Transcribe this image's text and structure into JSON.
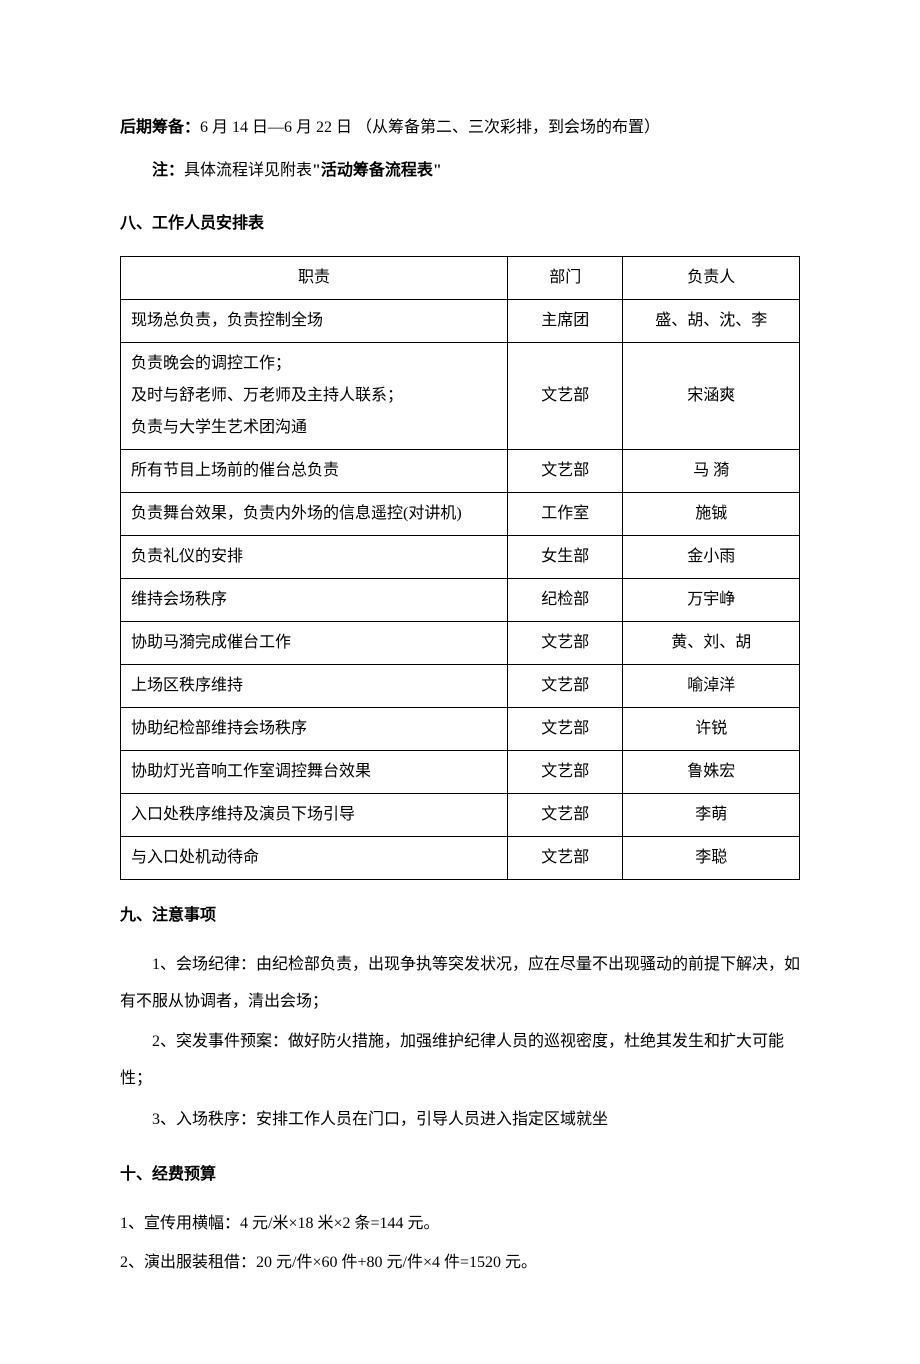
{
  "prep": {
    "label": "后期筹备：",
    "text": "6 月 14 日—6 月 22 日 （从筹备第二、三次彩排，到会场的布置）"
  },
  "note": {
    "prefix": "注：",
    "mid": "具体流程详见附表",
    "quoted": "\"活动筹备流程表\""
  },
  "section8": {
    "heading": "八、工作人员安排表",
    "headers": {
      "duty": "职责",
      "dept": "部门",
      "person": "负责人"
    },
    "rows": [
      {
        "duty": "现场总负责，负责控制全场",
        "dept": "主席团",
        "person": "盛、胡、沈、李"
      },
      {
        "duty": "负责晚会的调控工作；\n及时与舒老师、万老师及主持人联系；\n负责与大学生艺术团沟通",
        "dept": "文艺部",
        "person": "宋涵爽"
      },
      {
        "duty": "所有节目上场前的催台总负责",
        "dept": "文艺部",
        "person": "马 漪"
      },
      {
        "duty": "负责舞台效果，负责内外场的信息遥控(对讲机)",
        "dept": "工作室",
        "person": "施铖"
      },
      {
        "duty": "负责礼仪的安排",
        "dept": "女生部",
        "person": "金小雨"
      },
      {
        "duty": "维持会场秩序",
        "dept": "纪检部",
        "person": "万宇峥"
      },
      {
        "duty": "协助马漪完成催台工作",
        "dept": "文艺部",
        "person": "黄、刘、胡"
      },
      {
        "duty": "上场区秩序维持",
        "dept": "文艺部",
        "person": "喻淖洋"
      },
      {
        "duty": "协助纪检部维持会场秩序",
        "dept": "文艺部",
        "person": "许锐"
      },
      {
        "duty": "协助灯光音响工作室调控舞台效果",
        "dept": "文艺部",
        "person": "鲁姝宏"
      },
      {
        "duty": "入口处秩序维持及演员下场引导",
        "dept": "文艺部",
        "person": "李萌"
      },
      {
        "duty": "与入口处机动待命",
        "dept": "文艺部",
        "person": "李聪"
      }
    ]
  },
  "section9": {
    "heading": "九、注意事项",
    "items": [
      "1、会场纪律：由纪检部负责，出现争执等突发状况，应在尽量不出现骚动的前提下解决，如有不服从协调者，清出会场；",
      "2、突发事件预案：做好防火措施，加强维护纪律人员的巡视密度，杜绝其发生和扩大可能性；",
      "3、入场秩序：安排工作人员在门口，引导人员进入指定区域就坐"
    ]
  },
  "section10": {
    "heading": "十、经费预算",
    "items": [
      "1、宣传用横幅：4 元/米×18 米×2 条=144 元。",
      "2、演出服装租借：20 元/件×60 件+80 元/件×4 件=1520 元。"
    ]
  }
}
